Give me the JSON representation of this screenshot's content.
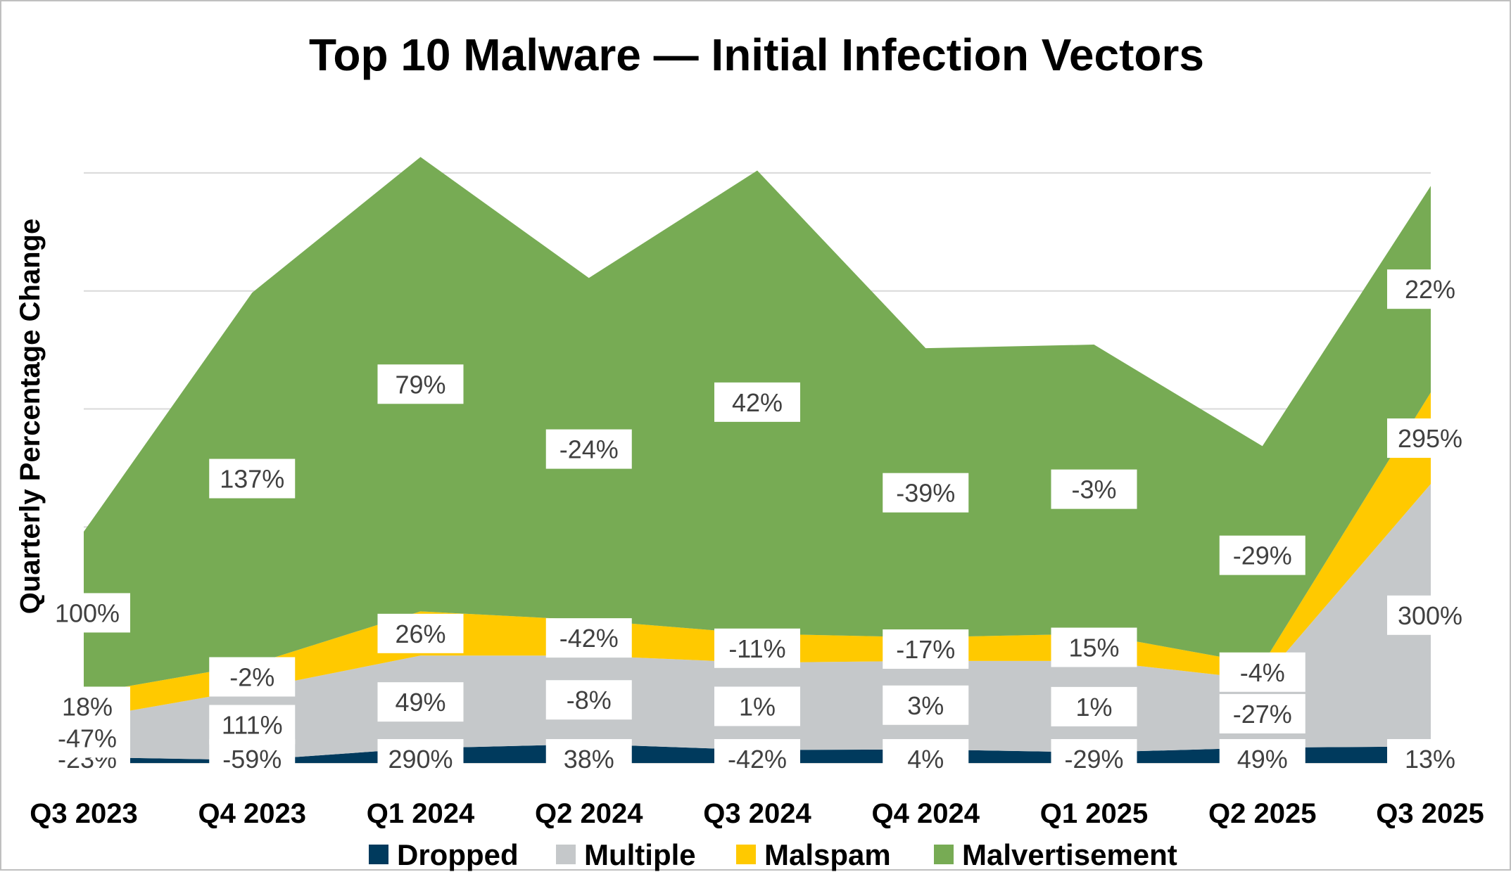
{
  "chart_data": {
    "type": "area",
    "stacked": true,
    "title": "Top 10 Malware — Initial Infection Vectors",
    "ylabel": "Quarterly Percentage Change",
    "xlabel": "",
    "categories": [
      "Q3 2023",
      "Q4 2023",
      "Q1 2024",
      "Q2 2024",
      "Q3 2024",
      "Q4 2024",
      "Q1 2025",
      "Q2 2025",
      "Q3 2025"
    ],
    "grid": true,
    "legend_position": "bottom",
    "series": [
      {
        "name": "Dropped",
        "color": "#003a5d",
        "values": [
          1.0,
          0.5,
          2.5,
          3.2,
          2.2,
          2.3,
          1.8,
          2.6,
          2.8
        ],
        "labels": [
          "-23%",
          "-59%",
          "290%",
          "38%",
          "-42%",
          "4%",
          "-29%",
          "49%",
          "13%"
        ]
      },
      {
        "name": "Multiple",
        "color": "#c5c8ca",
        "values": [
          6.5,
          12.0,
          15.7,
          15.0,
          14.8,
          15.0,
          15.5,
          11.5,
          44.5
        ]
      },
      {
        "name": "Malspam",
        "color": "#ffc900",
        "values": [
          4.2,
          4.2,
          7.5,
          6.0,
          4.9,
          4.0,
          4.6,
          2.6,
          15.5
        ]
      },
      {
        "name": "Malvertisement",
        "color": "#77ab54",
        "values": [
          27.5,
          63.0,
          77.0,
          58.0,
          78.5,
          49.0,
          49.0,
          37.0,
          35.0
        ]
      }
    ],
    "point_labels": {
      "Dropped": [
        "-23%",
        "-59%",
        "290%",
        "38%",
        "-42%",
        "4%",
        "-29%",
        "49%",
        "13%"
      ],
      "Multiple": [
        "-47%",
        "111%",
        "49%",
        "-8%",
        "1%",
        "3%",
        "1%",
        "-27%",
        "300%"
      ],
      "Malspam": [
        "18%",
        "-2%",
        "26%",
        "-42%",
        "-11%",
        "-17%",
        "15%",
        "-4%",
        "295%"
      ],
      "Malvertisement": [
        "100%",
        "137%",
        "79%",
        "-24%",
        "42%",
        "-39%",
        "-3%",
        "-29%",
        "22%"
      ]
    },
    "ylim": [
      0,
      115
    ]
  }
}
